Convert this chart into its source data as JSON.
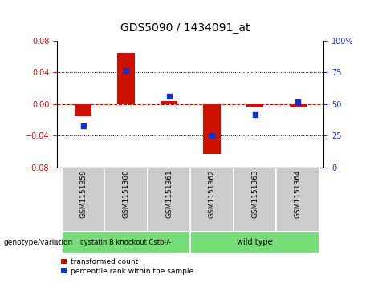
{
  "title": "GDS5090 / 1434091_at",
  "samples": [
    "GSM1151359",
    "GSM1151360",
    "GSM1151361",
    "GSM1151362",
    "GSM1151363",
    "GSM1151364"
  ],
  "red_values": [
    -0.015,
    0.065,
    0.004,
    -0.063,
    -0.004,
    -0.004
  ],
  "blue_values": [
    -0.028,
    0.042,
    0.01,
    -0.04,
    -0.013,
    0.003
  ],
  "ylim_left": [
    -0.08,
    0.08
  ],
  "ylim_right": [
    0,
    100
  ],
  "left_yticks": [
    -0.08,
    -0.04,
    0.0,
    0.04,
    0.08
  ],
  "right_yticks": [
    0,
    25,
    50,
    75,
    100
  ],
  "group_labels": [
    "cystatin B knockout Cstb-/-",
    "wild type"
  ],
  "group_color": "#77dd77",
  "red_color": "#cc1100",
  "blue_color": "#1133cc",
  "bar_width": 0.4,
  "tick_area_color": "#cccccc",
  "legend_red": "transformed count",
  "legend_blue": "percentile rank within the sample",
  "genotype_label": "genotype/variation"
}
